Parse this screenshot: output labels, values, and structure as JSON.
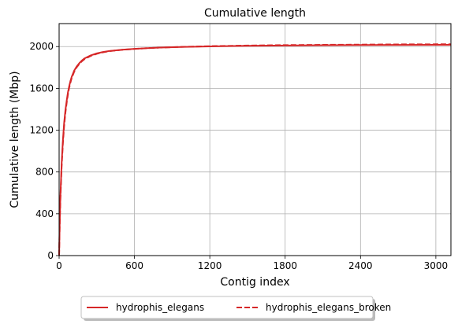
{
  "chart_data": {
    "type": "line",
    "title": "Cumulative length",
    "xlabel": "Contig index",
    "ylabel": "Cumulative length (Mbp)",
    "xlim": [
      0,
      3120
    ],
    "ylim": [
      0,
      2220
    ],
    "xticks": [
      0,
      600,
      1200,
      1800,
      2400,
      3000
    ],
    "yticks": [
      0,
      400,
      800,
      1200,
      1600,
      2000
    ],
    "grid": true,
    "legend_position": "bottom-center",
    "series": [
      {
        "name": "hydrophis_elegans",
        "color": "#d62728",
        "style": "solid",
        "x": [
          0,
          5,
          10,
          20,
          30,
          40,
          50,
          60,
          70,
          80,
          90,
          100,
          120,
          140,
          160,
          180,
          200,
          250,
          300,
          350,
          400,
          500,
          600,
          700,
          800,
          1000,
          1200,
          1500,
          1800,
          2100,
          2400,
          2700,
          3000,
          3120
        ],
        "y": [
          0,
          320,
          560,
          880,
          1100,
          1270,
          1390,
          1480,
          1560,
          1620,
          1670,
          1710,
          1770,
          1810,
          1840,
          1865,
          1885,
          1915,
          1935,
          1948,
          1958,
          1970,
          1978,
          1985,
          1990,
          1997,
          2002,
          2007,
          2010,
          2013,
          2015,
          2016,
          2017,
          2017
        ]
      },
      {
        "name": "hydrophis_elegans_broken",
        "color": "#d62728",
        "style": "dashed",
        "x": [
          0,
          5,
          10,
          20,
          30,
          40,
          50,
          60,
          70,
          80,
          90,
          100,
          120,
          140,
          160,
          180,
          200,
          250,
          300,
          350,
          400,
          500,
          600,
          700,
          800,
          1000,
          1200,
          1500,
          1800,
          2100,
          2400,
          2700,
          3000,
          3120
        ],
        "y": [
          0,
          300,
          530,
          850,
          1070,
          1240,
          1365,
          1460,
          1540,
          1605,
          1655,
          1698,
          1760,
          1802,
          1833,
          1858,
          1878,
          1910,
          1931,
          1945,
          1956,
          1969,
          1977,
          1985,
          1990,
          1998,
          2004,
          2010,
          2014,
          2017,
          2019,
          2021,
          2022,
          2022
        ]
      }
    ]
  }
}
